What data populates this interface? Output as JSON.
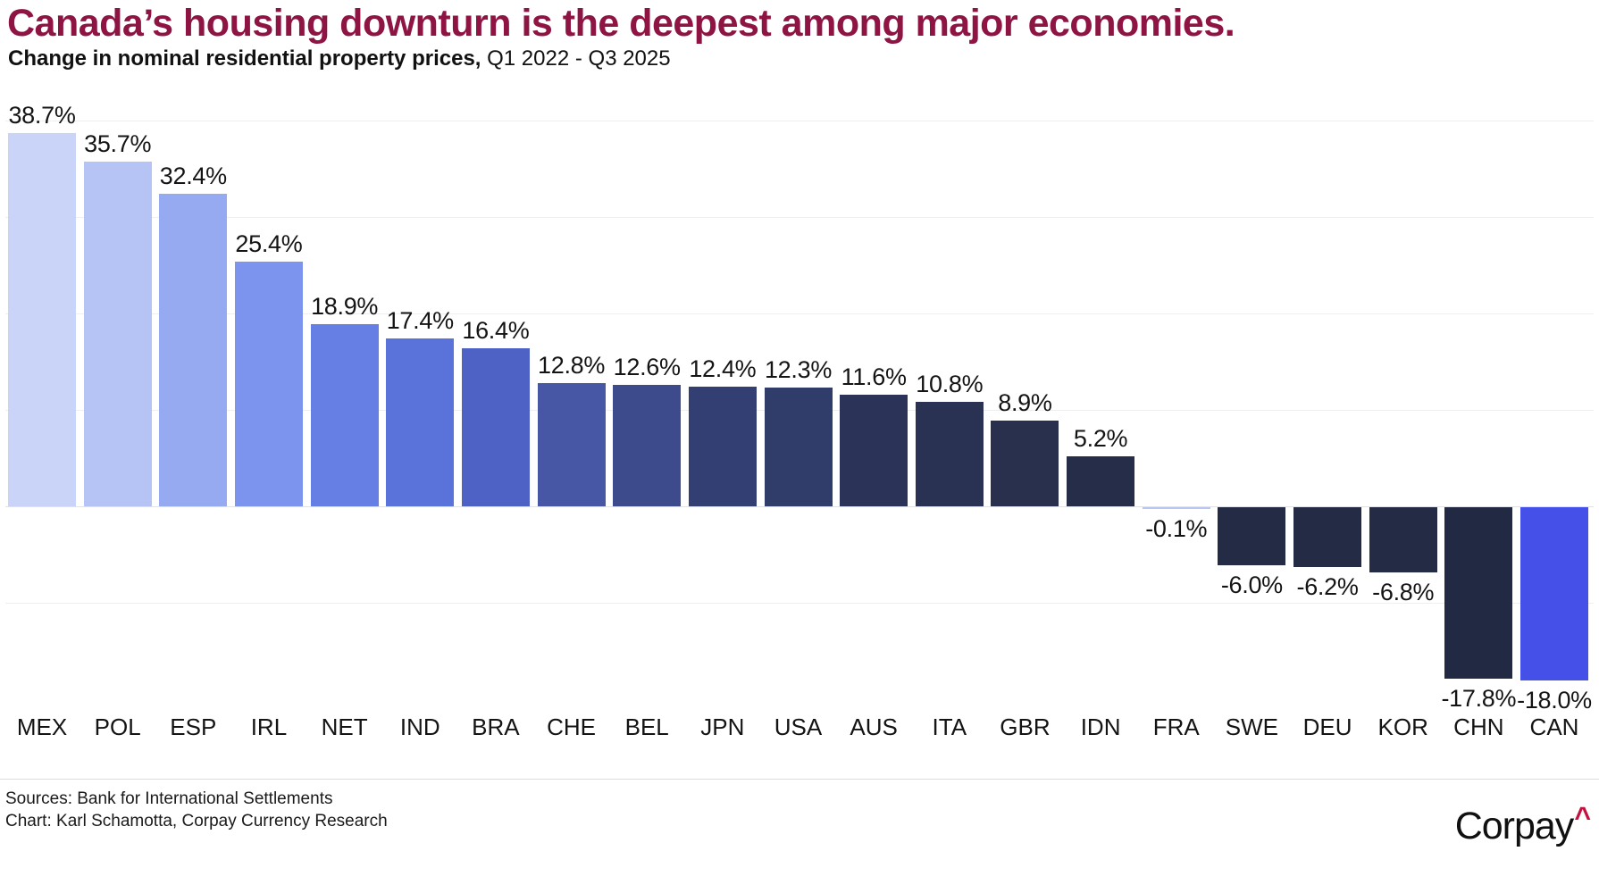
{
  "header": {
    "title": "Canada’s housing downturn is the deepest among major economies.",
    "subtitle_bold": "Change in nominal residential property prices,",
    "subtitle_regular": " Q1 2022 - Q3 2025"
  },
  "chart_data": {
    "type": "bar",
    "title": "Canada’s housing downturn is the deepest among major economies.",
    "subtitle": "Change in nominal residential property prices, Q1 2022 - Q3 2025",
    "xlabel": "",
    "ylabel": "",
    "categories": [
      "MEX",
      "POL",
      "ESP",
      "IRL",
      "NET",
      "IND",
      "BRA",
      "CHE",
      "BEL",
      "JPN",
      "USA",
      "AUS",
      "ITA",
      "GBR",
      "IDN",
      "FRA",
      "SWE",
      "DEU",
      "KOR",
      "CHN",
      "CAN"
    ],
    "values": [
      38.7,
      35.7,
      32.4,
      25.4,
      18.9,
      17.4,
      16.4,
      12.8,
      12.6,
      12.4,
      12.3,
      11.6,
      10.8,
      8.9,
      5.2,
      -0.1,
      -6.0,
      -6.2,
      -6.8,
      -17.8,
      -18.0
    ],
    "data_labels": [
      "38.7%",
      "35.7%",
      "32.4%",
      "25.4%",
      "18.9%",
      "17.4%",
      "16.4%",
      "12.8%",
      "12.6%",
      "12.4%",
      "12.3%",
      "11.6%",
      "10.8%",
      "8.9%",
      "5.2%",
      "-0.1%",
      "-6.0%",
      "-6.2%",
      "-6.8%",
      "-17.8%",
      "-18.0%"
    ],
    "bar_colors": [
      "#c9d4f8",
      "#b5c4f5",
      "#95aaf1",
      "#7c94ed",
      "#667fe5",
      "#5a73da",
      "#4e61c4",
      "#4757a5",
      "#3d4b8c",
      "#333f73",
      "#303c69",
      "#2b3458",
      "#2a3253",
      "#28304e",
      "#262d49",
      "#b9c6f4",
      "#232b45",
      "#232b45",
      "#232b45",
      "#222a43",
      "#4550e9"
    ],
    "ylim": [
      -20,
      40
    ],
    "gridlines_at": [
      40,
      30,
      20,
      10,
      0,
      -10
    ],
    "grid": "horizontal, faint, no axis tick labels",
    "legend": "none"
  },
  "footer": {
    "sources": "Sources: Bank for International Settlements",
    "credit": "Chart: Karl Schamotta, Corpay Currency Research",
    "logo_text": "Corpay",
    "logo_caret": "^"
  },
  "colors": {
    "title_maroon": "#8e1543",
    "logo_caret_red": "#c3123f",
    "label_text": "#141414",
    "grid": "#efefef",
    "divider": "#dcdcdc",
    "background": "#ffffff"
  }
}
